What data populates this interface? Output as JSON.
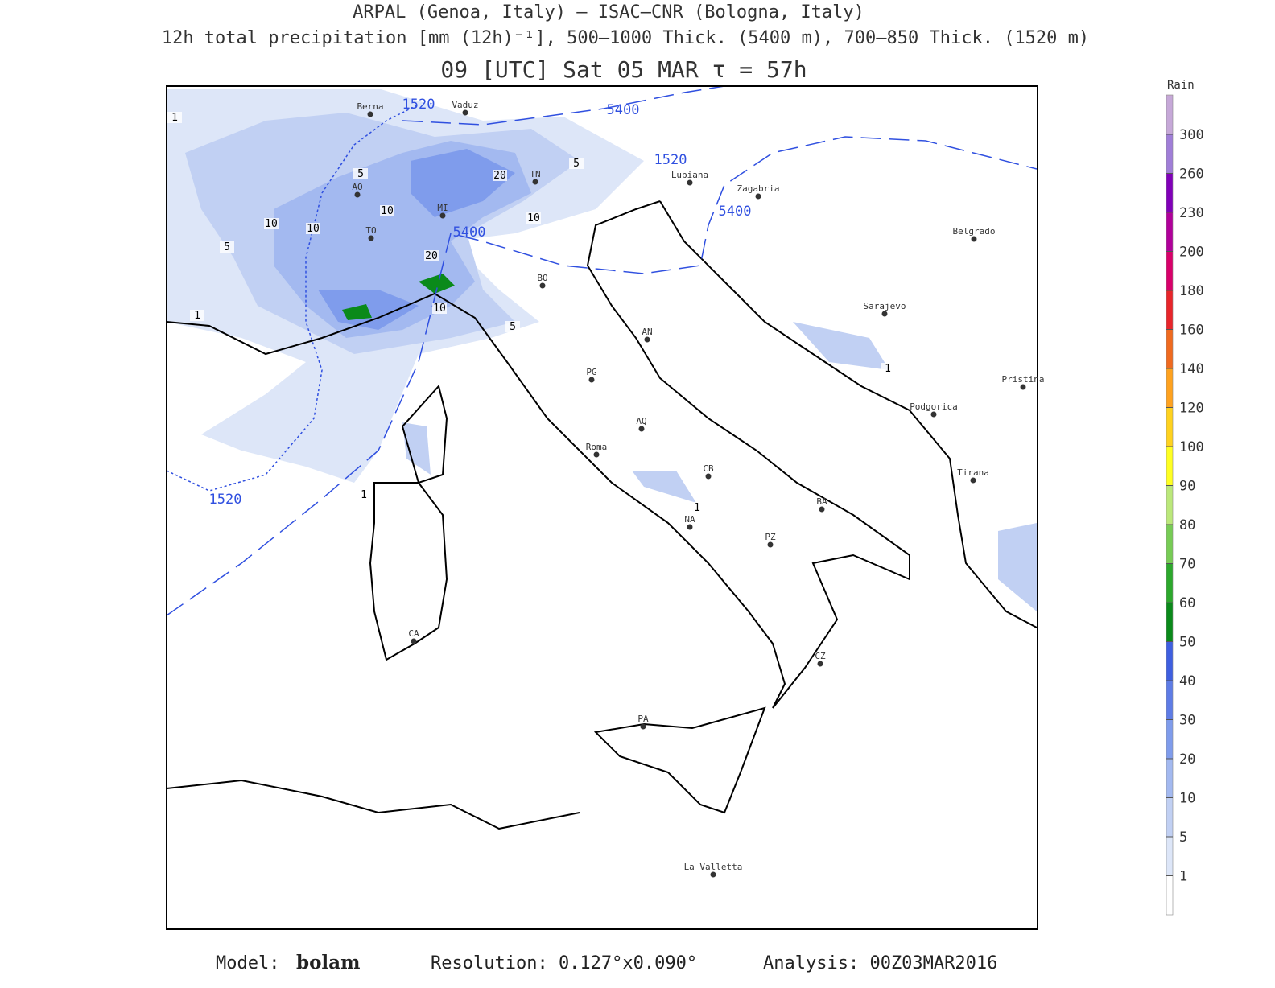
{
  "header": {
    "line1": "ARPAL (Genoa, Italy)  –  ISAC–CNR (Bologna, Italy)",
    "line2": "12h total precipitation [mm (12h)⁻¹], 500–1000 Thick. (5400 m), 700–850 Thick. (1520 m)",
    "line3": "09 [UTC] Sat 05 MAR  τ = 57h"
  },
  "map": {
    "cities": [
      "Berna",
      "Vaduz",
      "TN",
      "AO",
      "MI",
      "TO",
      "BO",
      "Lubiana",
      "Zagabria",
      "Belgrado",
      "Sarajevo",
      "AN",
      "PG",
      "AQ",
      "Pristina",
      "Podgorica",
      "Roma",
      "CB",
      "Tirana",
      "BA",
      "NA",
      "PZ",
      "CA",
      "CZ",
      "PA",
      "La Valletta"
    ],
    "thickness_labels": [
      "1520",
      "1520",
      "1520",
      "5400",
      "5400",
      "5400"
    ],
    "precip_labels": [
      "1",
      "1",
      "1",
      "1",
      "1",
      "5",
      "5",
      "5",
      "5",
      "10",
      "10",
      "10",
      "10",
      "10",
      "20",
      "20"
    ]
  },
  "colorbar": {
    "title": "Rain",
    "ticks": [
      1,
      5,
      10,
      20,
      30,
      40,
      50,
      60,
      70,
      80,
      90,
      100,
      120,
      140,
      160,
      180,
      200,
      230,
      260,
      300
    ],
    "colors": [
      "#ffffff",
      "#dde6f8",
      "#c1d0f3",
      "#a3b9f0",
      "#7f9cec",
      "#5e7ce6",
      "#3f5fe0",
      "#0a8a1a",
      "#2ca82c",
      "#77cc55",
      "#bbe87a",
      "#ffff22",
      "#ffd21f",
      "#ffa21f",
      "#f06a1f",
      "#e8252a",
      "#d8006a",
      "#b0009a",
      "#8000b8",
      "#a07ed8",
      "#c6a8d8",
      "#d8b0b8",
      "#ecd6dc"
    ]
  },
  "footer": {
    "model_label": "Model:",
    "model": "bolam",
    "resolution": "Resolution: 0.127°x0.090°",
    "analysis": "Analysis: 00Z03MAR2016"
  }
}
